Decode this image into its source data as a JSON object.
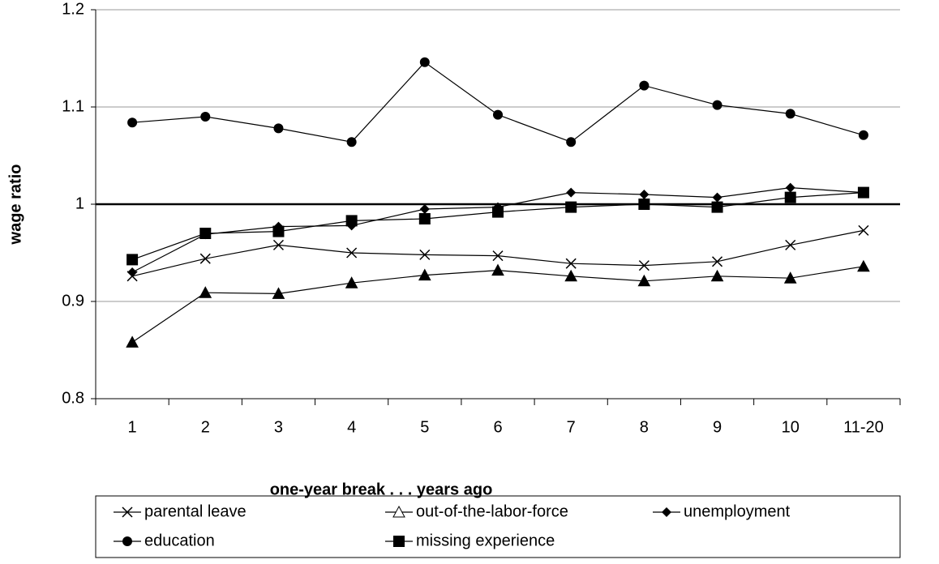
{
  "chart_data": {
    "type": "line",
    "x_label": "one-year break . . . years ago",
    "y_label": "wage ratio",
    "categories": [
      "1",
      "2",
      "3",
      "4",
      "5",
      "6",
      "7",
      "8",
      "9",
      "10",
      "11-20"
    ],
    "ylim": [
      0.8,
      1.2
    ],
    "yticks": [
      0.8,
      0.9,
      1,
      1.1,
      1.2
    ],
    "grid": true,
    "reference_line": 1,
    "legend": "bottom",
    "series": [
      {
        "name": "parental leave",
        "color": "#000000",
        "marker": "x",
        "values": [
          0.926,
          0.944,
          0.958,
          0.95,
          0.948,
          0.947,
          0.939,
          0.937,
          0.941,
          0.958,
          0.973
        ]
      },
      {
        "name": "out-of-the-labor-force",
        "color": "#000000",
        "marker": "triangle",
        "values": [
          0.858,
          0.909,
          0.908,
          0.919,
          0.927,
          0.932,
          0.926,
          0.921,
          0.926,
          0.924,
          0.936
        ]
      },
      {
        "name": "unemployment",
        "color": "#000000",
        "marker": "diamond",
        "values": [
          0.93,
          0.969,
          0.977,
          0.978,
          0.995,
          0.997,
          1.012,
          1.01,
          1.007,
          1.017,
          1.012
        ]
      },
      {
        "name": "education",
        "color": "#000000",
        "marker": "circle",
        "values": [
          1.084,
          1.09,
          1.078,
          1.064,
          1.146,
          1.092,
          1.064,
          1.122,
          1.102,
          1.093,
          1.071
        ]
      },
      {
        "name": "missing experience",
        "color": "#000000",
        "marker": "square",
        "values": [
          0.943,
          0.97,
          0.972,
          0.983,
          0.985,
          0.992,
          0.997,
          1.0,
          0.997,
          1.007,
          1.012
        ]
      }
    ]
  }
}
